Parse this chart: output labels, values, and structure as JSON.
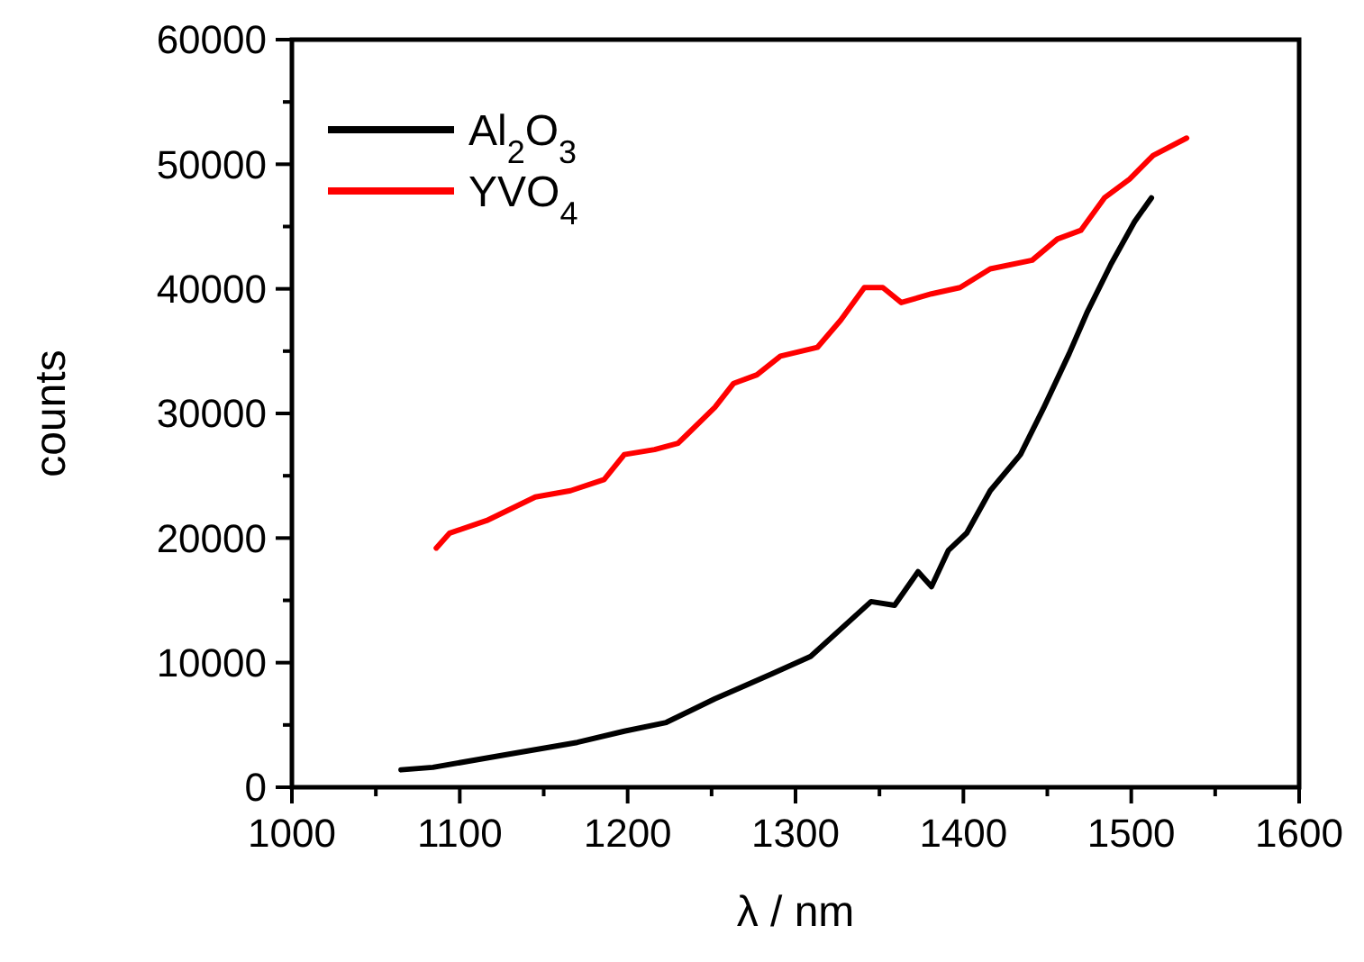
{
  "chart_data": {
    "type": "line",
    "xlabel": "λ / nm",
    "ylabel": "counts",
    "xlim": [
      1000,
      1600
    ],
    "ylim": [
      0,
      60000
    ],
    "xticks": [
      1000,
      1100,
      1200,
      1300,
      1400,
      1500,
      1600
    ],
    "yticks": [
      0,
      10000,
      20000,
      30000,
      40000,
      50000,
      60000
    ],
    "legend": "top left",
    "grid": false,
    "marker": "none",
    "line_style": "solid",
    "series": [
      {
        "name": "Al$_{2}$O$_{3}$",
        "color": "#000000",
        "x": [
          1065,
          1084,
          1127,
          1170,
          1198,
          1223,
          1252,
          1286,
          1309,
          1345,
          1359,
          1373,
          1381,
          1391,
          1402,
          1416,
          1434,
          1448,
          1463,
          1474,
          1488,
          1502,
          1512
        ],
        "values": [
          1400,
          1600,
          2600,
          3600,
          4500,
          5200,
          7100,
          9100,
          10500,
          14900,
          14600,
          17300,
          16100,
          19000,
          20400,
          23800,
          26700,
          30500,
          34800,
          38200,
          42000,
          45400,
          47300
        ]
      },
      {
        "name": "YVO$_{4}$",
        "color": "#ff0000",
        "x": [
          1086,
          1094,
          1116,
          1145,
          1166,
          1186,
          1198,
          1216,
          1230,
          1252,
          1263,
          1277,
          1291,
          1313,
          1327,
          1341,
          1352,
          1363,
          1381,
          1398,
          1416,
          1441,
          1456,
          1470,
          1484,
          1499,
          1513,
          1533
        ],
        "values": [
          19200,
          20400,
          21400,
          23300,
          23800,
          24700,
          26700,
          27100,
          27600,
          30500,
          32400,
          33100,
          34600,
          35300,
          37500,
          40100,
          40100,
          38900,
          39600,
          40100,
          41600,
          42300,
          44000,
          44700,
          47300,
          48800,
          50700,
          52100
        ]
      }
    ]
  }
}
